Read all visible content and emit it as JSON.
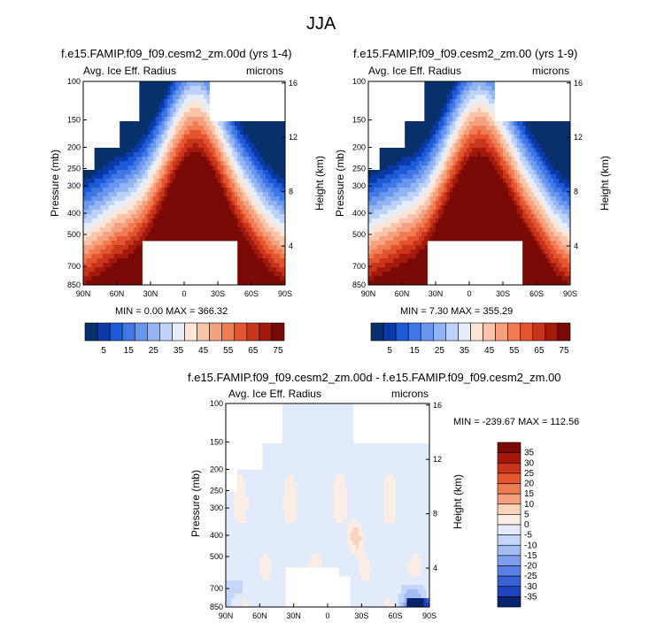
{
  "title": "JJA",
  "variable_label": "Avg. Ice Eff. Radius",
  "units_label": "microns",
  "ylabel_left": "Pressure (mb)",
  "ylabel_right": "Height (km)",
  "panels": [
    {
      "title": "f.e15.FAMIP.f09_f09.cesm2_zm.00d (yrs 1-4)",
      "stats": "MIN =   0.00   MAX = 366.32"
    },
    {
      "title": "f.e15.FAMIP.f09_f09.cesm2_zm.00 (yrs 1-9)",
      "stats": "MIN =   7.30   MAX = 355.29"
    },
    {
      "title": "f.e15.FAMIP.f09_f09.cesm2_zm.00d - f.e15.FAMIP.f09_f09.cesm2_zm.00",
      "stats": "MIN = -239.67   MAX = 112.56"
    }
  ],
  "chart_data": [
    {
      "type": "heatmap",
      "title": "f.e15.FAMIP.f09_f09.cesm2_zm.00d (yrs 1-4)",
      "xlabel": "",
      "ylabel": "Pressure (mb)",
      "y2label": "Height (km)",
      "x_ticks": [
        "90N",
        "60N",
        "30N",
        "0",
        "30S",
        "60S",
        "90S"
      ],
      "y_ticks": [
        100,
        150,
        200,
        250,
        300,
        400,
        500,
        700,
        850
      ],
      "y2_ticks": [
        16,
        12,
        8,
        4
      ],
      "y_scale": "log",
      "ylim": [
        100,
        850
      ],
      "value_range": [
        0.0,
        366.32
      ],
      "colorbar_ticks": [
        5,
        15,
        25,
        35,
        45,
        55,
        65,
        75
      ]
    },
    {
      "type": "heatmap",
      "title": "f.e15.FAMIP.f09_f09.cesm2_zm.00 (yrs 1-9)",
      "xlabel": "",
      "ylabel": "Pressure (mb)",
      "y2label": "Height (km)",
      "x_ticks": [
        "90N",
        "60N",
        "30N",
        "0",
        "30S",
        "60S",
        "90S"
      ],
      "y_ticks": [
        100,
        150,
        200,
        250,
        300,
        400,
        500,
        700,
        850
      ],
      "y2_ticks": [
        16,
        12,
        8,
        4
      ],
      "y_scale": "log",
      "ylim": [
        100,
        850
      ],
      "value_range": [
        7.3,
        355.29
      ],
      "colorbar_ticks": [
        5,
        15,
        25,
        35,
        45,
        55,
        65,
        75
      ]
    },
    {
      "type": "heatmap",
      "title": "f.e15.FAMIP.f09_f09.cesm2_zm.00d - f.e15.FAMIP.f09_f09.cesm2_zm.00",
      "xlabel": "",
      "ylabel": "Pressure (mb)",
      "y2label": "Height (km)",
      "x_ticks": [
        "90N",
        "60N",
        "30N",
        "0",
        "30S",
        "60S",
        "90S"
      ],
      "y_ticks": [
        100,
        150,
        200,
        250,
        300,
        400,
        500,
        700,
        850
      ],
      "y2_ticks": [
        16,
        12,
        8,
        4
      ],
      "y_scale": "log",
      "ylim": [
        100,
        850
      ],
      "value_range": [
        -239.67,
        112.56
      ],
      "colorbar_ticks": [
        35,
        30,
        25,
        20,
        15,
        10,
        5,
        0,
        -5,
        -10,
        -15,
        -20,
        -25,
        -30,
        -35
      ]
    }
  ],
  "colors": {
    "abs_palette": [
      "#08306b",
      "#0a3aa8",
      "#1c5ad8",
      "#3f78e6",
      "#6a97ee",
      "#92b4f3",
      "#bcd2f8",
      "#e6eefc",
      "#fde5d8",
      "#f9c4a8",
      "#f5a07e",
      "#f07c52",
      "#e4542f",
      "#c9351a",
      "#a31a0d",
      "#7a0a05"
    ],
    "diff_palette": [
      "#7a0a05",
      "#a31a0d",
      "#c9351a",
      "#e4542f",
      "#f07c52",
      "#f5a07e",
      "#fbd3bd",
      "#fdeee5",
      "#e1ebfb",
      "#c3d6f8",
      "#a2bdf3",
      "#7f9fee",
      "#5b80e6",
      "#3a62d8",
      "#1f43bd",
      "#08226b"
    ]
  }
}
